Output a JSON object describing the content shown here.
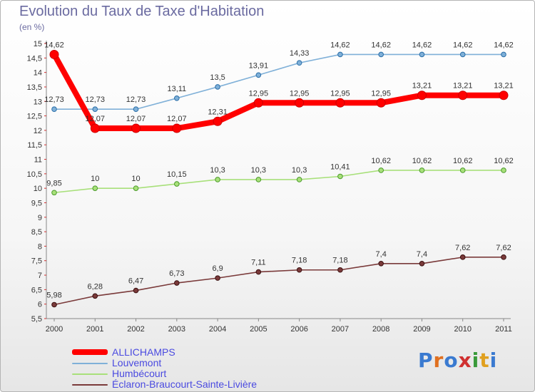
{
  "title": "Evolution du Taux de Taxe d'Habitation",
  "unit": "(en %)",
  "logo": "Proxiti",
  "chart_data": {
    "type": "line",
    "title": "Evolution du Taux de Taxe d'Habitation",
    "ylabel": "(en %)",
    "xlabel": "",
    "x": [
      "2000",
      "2001",
      "2002",
      "2003",
      "2004",
      "2005",
      "2006",
      "2007",
      "2008",
      "2009",
      "2010",
      "2011"
    ],
    "ylim": [
      5.5,
      15
    ],
    "yticks": [
      5.5,
      6,
      6.5,
      7,
      7.5,
      8,
      8.5,
      9,
      9.5,
      10,
      10.5,
      11,
      11.5,
      12,
      12.5,
      13,
      13.5,
      14,
      14.5,
      15
    ],
    "grid": false,
    "legend_position": "bottom-left",
    "series": [
      {
        "name": "ALLICHAMPS",
        "color": "#ff0000",
        "values": [
          14.62,
          12.07,
          12.07,
          12.07,
          12.31,
          12.95,
          12.95,
          12.95,
          12.95,
          13.21,
          13.21,
          13.21
        ]
      },
      {
        "name": "Louvemont",
        "color": "#7fb0d8",
        "values": [
          12.73,
          12.73,
          12.73,
          13.11,
          13.5,
          13.91,
          14.33,
          14.62,
          14.62,
          14.62,
          14.62,
          14.62
        ]
      },
      {
        "name": "Humbécourt",
        "color": "#a8e07a",
        "values": [
          9.85,
          10,
          10,
          10.15,
          10.3,
          10.3,
          10.3,
          10.41,
          10.62,
          10.62,
          10.62,
          10.62
        ]
      },
      {
        "name": "Éclaron-Braucourt-Sainte-Livière",
        "color": "#7a3a3a",
        "values": [
          5.98,
          6.28,
          6.47,
          6.73,
          6.9,
          7.11,
          7.18,
          7.18,
          7.4,
          7.4,
          7.62,
          7.62
        ]
      }
    ]
  }
}
